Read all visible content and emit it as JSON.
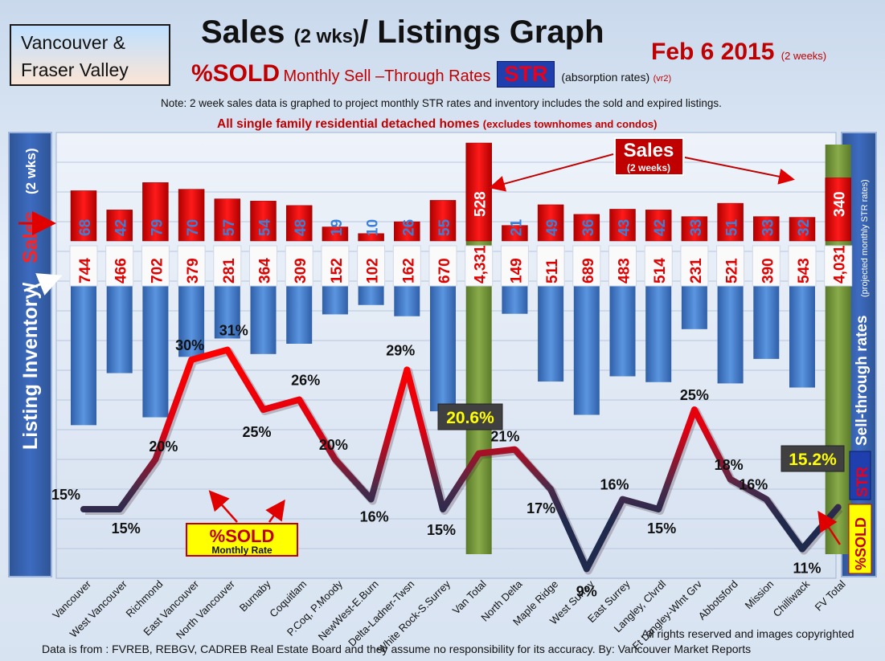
{
  "header": {
    "region_line1": "Vancouver &",
    "region_line2": "Fraser Valley",
    "title_main": "Sales ",
    "title_small": "(2 wks)",
    "title_rest": "/ Listings Graph",
    "date": "Feb 6 2015",
    "date_note": "(2 weeks)",
    "sold_label": "%SOLD",
    "monthly_label": "Monthly Sell –Through Rates",
    "str_badge": "STR",
    "absorption_label": "(absorption rates)",
    "version": "(vr2)",
    "note": "Note: 2 week sales data is graphed to project monthly STR rates and inventory includes the sold and expired listings.",
    "scope": "All single family residential detached homes",
    "scope_note": "(excludes townhomes and condos)"
  },
  "side_labels": {
    "left_inventory": "Listing Inventory/",
    "left_sales": "Sales",
    "left_period": "(2 wks)",
    "right_rates": "Sell-through rates",
    "right_projected": "(projected monthly STR rates)",
    "right_str": "STR",
    "right_sold": "%SOLD"
  },
  "callouts": {
    "sales_title": "Sales",
    "sales_sub": "(2 weeks)",
    "sold_title": "%SOLD",
    "sold_sub": "Monthly Rate",
    "van_total_rate": "20.6%",
    "fv_total_rate": "15.2%"
  },
  "footer": {
    "rights": "All rights reserved and  images copyrighted",
    "source": "Data is from : FVREB, REBGV, CADREB Real Estate Board and they assume no responsibility for its accuracy.  By: Vancouver Market Reports"
  },
  "colors": {
    "sales_bar": "#e00000",
    "inventory_bar": "#4f86d4",
    "total_bar": "#76923c",
    "line_high": "#ff0000",
    "line_low": "#1f2a4d",
    "str_badge": "#1f3fae"
  },
  "chart_data": {
    "type": "bar",
    "categories": [
      "Vancouver",
      "West Vancouver",
      "Richmond",
      "East Vancouver",
      "North Vancouver",
      "Burnaby",
      "Coquitlam",
      "P.Coq, P.Moody",
      "NewWest-E.Burn",
      "Delta-Ladner-Twsn",
      "White Rock-S.Surrey",
      "Van Total",
      "North Delta",
      "Maple Ridge",
      "West Surrey",
      "East Surrey",
      "Langley, Clvrdl",
      "Ft Langley-Wlnt Grv",
      "Abbotsford",
      "Mission",
      "Chilliwack",
      "FV Total"
    ],
    "series": [
      {
        "name": "Sales",
        "values": [
          68,
          42,
          79,
          70,
          57,
          54,
          48,
          19,
          10,
          26,
          55,
          528,
          21,
          49,
          36,
          43,
          42,
          33,
          51,
          33,
          32,
          340
        ]
      },
      {
        "name": "Listing Inventory",
        "values": [
          744,
          466,
          702,
          379,
          281,
          364,
          309,
          152,
          102,
          162,
          670,
          4331,
          149,
          511,
          689,
          483,
          514,
          231,
          521,
          390,
          543,
          4031
        ]
      },
      {
        "name": "%SOLD",
        "values": [
          15,
          15,
          20,
          30,
          31,
          25,
          26,
          20,
          16,
          29,
          15,
          20.6,
          21,
          17,
          9,
          16,
          15,
          25,
          18,
          16,
          11,
          15.2
        ]
      }
    ],
    "sales_labels": [
      "68",
      "42",
      "79",
      "70",
      "57",
      "54",
      "48",
      "19",
      "10",
      "26",
      "55",
      "528",
      "21",
      "49",
      "36",
      "43",
      "42",
      "33",
      "51",
      "33",
      "32",
      "340"
    ],
    "inventory_labels": [
      "744",
      "466",
      "702",
      "379",
      "281",
      "364",
      "309",
      "152",
      "102",
      "162",
      "670",
      "4,331",
      "149",
      "511",
      "689",
      "483",
      "514",
      "231",
      "521",
      "390",
      "543",
      "4,031"
    ],
    "percent_labels": [
      "15%",
      "15%",
      "20%",
      "30%",
      "31%",
      "25%",
      "26%",
      "20%",
      "16%",
      "29%",
      "15%",
      "",
      "21%",
      "17%",
      "9%",
      "16%",
      "15%",
      "25%",
      "18%",
      "16%",
      "11%",
      ""
    ],
    "total_indices": [
      11,
      21
    ],
    "xlabel": "",
    "ylabel": "",
    "grid": true
  }
}
